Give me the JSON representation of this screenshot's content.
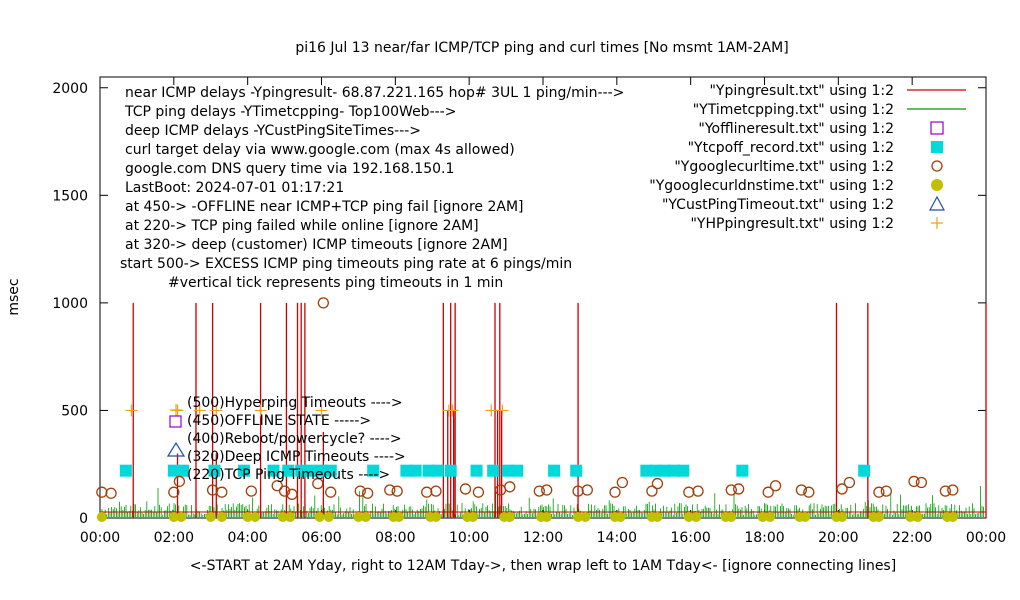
{
  "chart_data": {
    "type": "scatter",
    "title": "pi16 Jul 13  near/far ICMP/TCP ping and curl times [No msmt 1AM-2AM]",
    "xlabel": "<-START at 2AM Yday, right to 12AM Tday->, then wrap left to 1AM Tday<- [ignore connecting lines]",
    "ylabel": "msec",
    "xlim": [
      0,
      24
    ],
    "ylim": [
      0,
      2050
    ],
    "x_ticks": [
      "00:00",
      "02:00",
      "04:00",
      "06:00",
      "08:00",
      "10:00",
      "12:00",
      "14:00",
      "16:00",
      "18:00",
      "20:00",
      "22:00",
      "00:00"
    ],
    "y_ticks": [
      0,
      500,
      1000,
      1500,
      2000
    ],
    "grid": false,
    "legend_position": "top-right",
    "header_notes": [
      "near ICMP delays -Ypingresult- 68.87.221.165 hop# 3UL 1 ping/min--->",
      "TCP ping delays -YTimetcpping- Top100Web--->",
      "deep ICMP delays -YCustPingSiteTimes--->",
      "curl target delay via www.google.com (max 4s allowed)",
      "google.com DNS query time via 192.168.150.1",
      "LastBoot: 2024-07-01 01:17:21",
      "at 450-> -OFFLINE near ICMP+TCP ping fail [ignore 2AM]",
      "at 220-> TCP ping failed while online [ignore 2AM]",
      "at 320-> deep (customer) ICMP timeouts [ignore 2AM]",
      "start 500-> EXCESS ICMP ping timeouts ping rate at 6 pings/min",
      "#vertical tick represents ping timeouts in 1 min"
    ],
    "level_notes": [
      "(500)Hyperping Timeouts ---->",
      "(450)OFFLINE STATE ----->",
      "(400)Reboot/powercycle? ---->",
      "(320)Deep ICMP Timeouts ---->",
      "(220)TCP Ping Timeouts ---->"
    ],
    "legend": [
      {
        "label": "\"Ypingresult.txt\" using 1:2",
        "color": "#cc0000",
        "marker": "line"
      },
      {
        "label": "\"YTimetcpping.txt\" using 1:2",
        "color": "#009900",
        "marker": "line"
      },
      {
        "label": "\"Yofflineresult.txt\" using 1:2",
        "color": "#9400d3",
        "marker": "open-square"
      },
      {
        "label": "\"Ytcpoff_record.txt\" using 1:2",
        "color": "#00d9d9",
        "marker": "filled-square"
      },
      {
        "label": "\"Ygooglecurltime.txt\" using 1:2",
        "color": "#a0400a",
        "marker": "open-circle"
      },
      {
        "label": "\"Ygooglecurldnstime.txt\" using 1:2",
        "color": "#c0c000",
        "marker": "filled-circle"
      },
      {
        "label": "\"YCustPingTimeout.txt\" using 1:2",
        "color": "#1f4fa8",
        "marker": "open-triangle"
      },
      {
        "label": "\"YHPpingresult.txt\" using 1:2",
        "color": "#f0a020",
        "marker": "plus"
      }
    ],
    "series": [
      {
        "name": "\"Ypingresult.txt\" using 1:2",
        "spikes": [
          [
            0.9,
            1000
          ],
          [
            2.1,
            300
          ],
          [
            2.6,
            1000
          ],
          [
            3.05,
            1000
          ],
          [
            3.15,
            300
          ],
          [
            4.35,
            1000
          ],
          [
            5.05,
            1000
          ],
          [
            5.35,
            1000
          ],
          [
            5.45,
            1000
          ],
          [
            5.55,
            1000
          ],
          [
            6.05,
            400
          ],
          [
            9.3,
            1000
          ],
          [
            9.42,
            500
          ],
          [
            9.5,
            1000
          ],
          [
            9.58,
            500
          ],
          [
            9.62,
            1000
          ],
          [
            10.7,
            1000
          ],
          [
            10.77,
            500
          ],
          [
            10.83,
            1000
          ],
          [
            10.88,
            500
          ],
          [
            12.95,
            1000
          ],
          [
            19.95,
            1000
          ],
          [
            20.8,
            1000
          ],
          [
            24.0,
            1000
          ]
        ]
      },
      {
        "name": "\"Ytcpoff_record.txt\" using 1:2",
        "points": [
          [
            0.7,
            220
          ],
          [
            2.0,
            220
          ],
          [
            2.25,
            220
          ],
          [
            3.1,
            220
          ],
          [
            3.9,
            220
          ],
          [
            4.7,
            220
          ],
          [
            5.1,
            220
          ],
          [
            5.45,
            220
          ],
          [
            5.7,
            220
          ],
          [
            6.0,
            220
          ],
          [
            6.25,
            220
          ],
          [
            7.4,
            220
          ],
          [
            8.3,
            220
          ],
          [
            8.55,
            220
          ],
          [
            8.9,
            220
          ],
          [
            9.15,
            220
          ],
          [
            9.5,
            220
          ],
          [
            10.2,
            220
          ],
          [
            10.65,
            220
          ],
          [
            11.05,
            220
          ],
          [
            11.3,
            220
          ],
          [
            12.3,
            220
          ],
          [
            12.9,
            220
          ],
          [
            14.8,
            220
          ],
          [
            15.05,
            220
          ],
          [
            15.3,
            220
          ],
          [
            15.55,
            220
          ],
          [
            15.8,
            220
          ],
          [
            17.4,
            220
          ],
          [
            20.7,
            220
          ]
        ]
      },
      {
        "name": "\"Ygooglecurltime.txt\" using 1:2",
        "points": [
          [
            0.05,
            120
          ],
          [
            0.3,
            115
          ],
          [
            2.0,
            120
          ],
          [
            2.15,
            170
          ],
          [
            3.05,
            130
          ],
          [
            3.3,
            120
          ],
          [
            4.1,
            125
          ],
          [
            4.8,
            150
          ],
          [
            5.0,
            125
          ],
          [
            5.2,
            110
          ],
          [
            5.9,
            160
          ],
          [
            6.05,
            1000
          ],
          [
            6.25,
            120
          ],
          [
            7.05,
            125
          ],
          [
            7.25,
            115
          ],
          [
            7.85,
            130
          ],
          [
            8.05,
            125
          ],
          [
            8.85,
            120
          ],
          [
            9.1,
            125
          ],
          [
            9.9,
            135
          ],
          [
            10.25,
            120
          ],
          [
            10.85,
            130
          ],
          [
            11.1,
            145
          ],
          [
            11.9,
            125
          ],
          [
            12.1,
            130
          ],
          [
            12.95,
            125
          ],
          [
            13.2,
            130
          ],
          [
            13.95,
            120
          ],
          [
            14.15,
            165
          ],
          [
            14.95,
            125
          ],
          [
            15.1,
            160
          ],
          [
            15.95,
            120
          ],
          [
            16.2,
            125
          ],
          [
            17.1,
            130
          ],
          [
            17.3,
            135
          ],
          [
            18.1,
            120
          ],
          [
            18.3,
            150
          ],
          [
            19.0,
            130
          ],
          [
            19.2,
            120
          ],
          [
            20.1,
            135
          ],
          [
            20.3,
            165
          ],
          [
            21.1,
            120
          ],
          [
            21.3,
            125
          ],
          [
            22.05,
            170
          ],
          [
            22.25,
            165
          ],
          [
            22.9,
            125
          ],
          [
            23.1,
            130
          ]
        ]
      },
      {
        "name": "\"Ygooglecurldnstime.txt\" using 1:2",
        "points": [
          [
            0.05,
            0
          ],
          [
            2.0,
            0
          ],
          [
            2.2,
            0
          ],
          [
            3.0,
            0
          ],
          [
            3.3,
            0
          ],
          [
            4.0,
            0
          ],
          [
            4.2,
            0
          ],
          [
            4.95,
            0
          ],
          [
            5.15,
            0
          ],
          [
            5.95,
            0
          ],
          [
            6.2,
            0
          ],
          [
            7.0,
            0
          ],
          [
            7.2,
            0
          ],
          [
            7.95,
            0
          ],
          [
            8.1,
            0
          ],
          [
            8.95,
            0
          ],
          [
            9.1,
            0
          ],
          [
            9.95,
            0
          ],
          [
            10.1,
            0
          ],
          [
            10.95,
            0
          ],
          [
            11.1,
            0
          ],
          [
            11.95,
            0
          ],
          [
            12.1,
            0
          ],
          [
            12.95,
            0
          ],
          [
            13.15,
            0
          ],
          [
            13.95,
            0
          ],
          [
            14.1,
            0
          ],
          [
            14.95,
            0
          ],
          [
            15.1,
            0
          ],
          [
            15.95,
            0
          ],
          [
            16.15,
            0
          ],
          [
            16.95,
            0
          ],
          [
            17.1,
            0
          ],
          [
            17.95,
            0
          ],
          [
            18.15,
            0
          ],
          [
            18.95,
            0
          ],
          [
            19.1,
            0
          ],
          [
            19.95,
            0
          ],
          [
            20.1,
            0
          ],
          [
            20.95,
            0
          ],
          [
            21.1,
            0
          ],
          [
            21.95,
            0
          ],
          [
            22.15,
            0
          ],
          [
            22.95,
            0
          ],
          [
            23.1,
            0
          ]
        ]
      },
      {
        "name": "\"YHPpingresult.txt\" using 1:2",
        "points": [
          [
            0.85,
            500
          ],
          [
            2.1,
            500
          ],
          [
            2.7,
            500
          ],
          [
            3.15,
            500
          ],
          [
            4.35,
            500
          ],
          [
            6.0,
            500
          ],
          [
            9.45,
            500
          ],
          [
            9.55,
            500
          ],
          [
            10.6,
            500
          ],
          [
            10.9,
            500
          ]
        ]
      }
    ]
  }
}
